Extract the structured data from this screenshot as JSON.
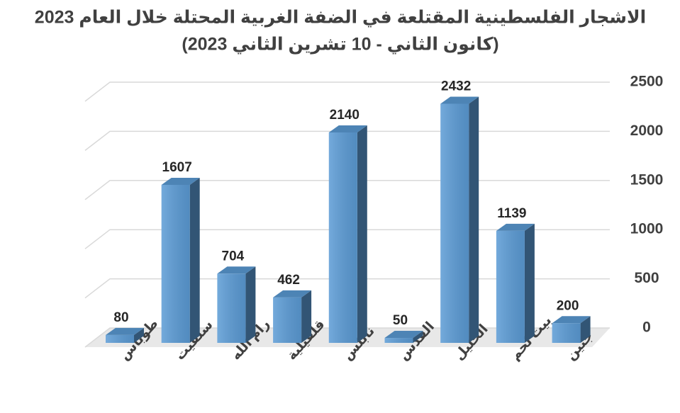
{
  "chart_data": {
    "type": "bar3d",
    "title": "الاشجار الفلسطينية المقتلعة في الضفة الغربية المحتلة خلال العام 2023",
    "subtitle": "(كانون الثاني - 10 تشرين الثاني 2023)",
    "categories": [
      "طوباس",
      "سلفيت",
      "رام الله",
      "قلقيلية",
      "نابلس",
      "القدس",
      "الخليل",
      "بيت لحم",
      "جنين"
    ],
    "values": [
      80,
      1607,
      704,
      462,
      2140,
      50,
      2432,
      1139,
      200
    ],
    "color": "#5b9bd5",
    "ylim": [
      0,
      2500
    ],
    "yticks": [
      0,
      500,
      1000,
      1500,
      2000,
      2500
    ],
    "grid": true
  }
}
